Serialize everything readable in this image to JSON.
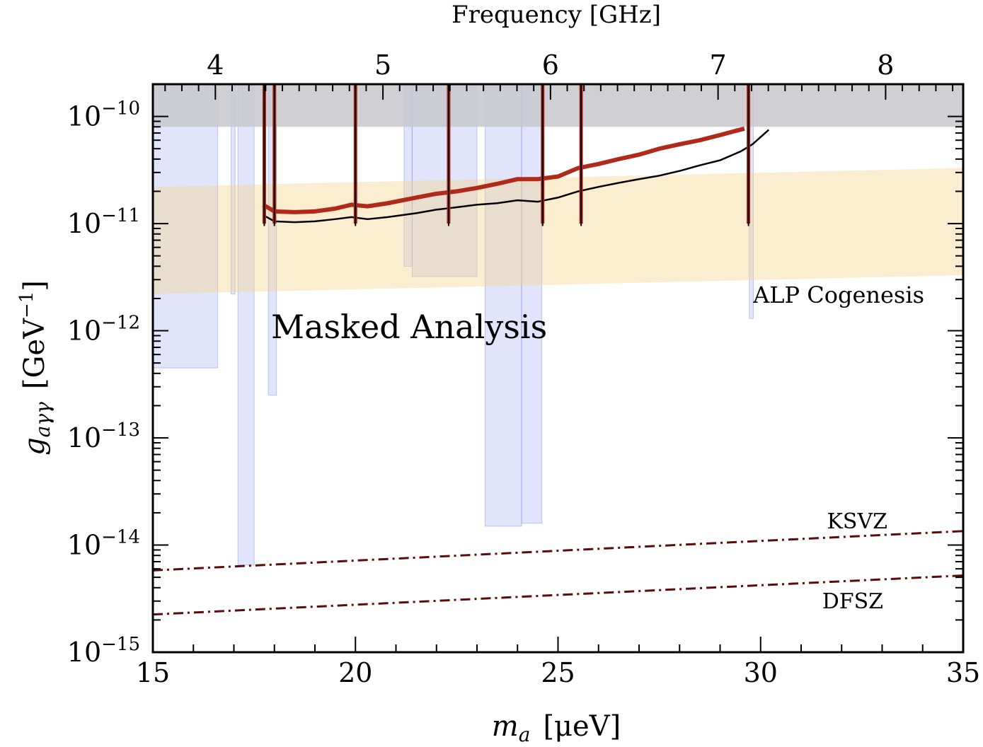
{
  "chart_data": {
    "type": "line",
    "x_axis": {
      "label": "m_a [μeV]",
      "label_parts": {
        "symbol": "m",
        "sub": "a",
        "unit": "[μeV]"
      },
      "scale": "linear",
      "range": [
        15,
        35
      ],
      "major_ticks": [
        15,
        20,
        25,
        30,
        35
      ],
      "minor_step": 1
    },
    "top_axis": {
      "label": "Frequency  [GHz]",
      "ticks": [
        {
          "value": 4,
          "label": "4"
        },
        {
          "value": 5,
          "label": "5"
        },
        {
          "value": 6,
          "label": "6"
        },
        {
          "value": 7,
          "label": "7"
        },
        {
          "value": 8,
          "label": "8"
        }
      ]
    },
    "y_axis": {
      "label": "g_aγγ [GeV^-1]",
      "label_parts": {
        "symbol": "g",
        "sub": "aγγ",
        "unit_open": "[GeV",
        "unit_exp": "−1",
        "unit_close": "]"
      },
      "scale": "log",
      "range": [
        1e-15,
        2e-10
      ],
      "ticks": [
        {
          "value": 1e-15,
          "base": "10",
          "exp": "−15"
        },
        {
          "value": 1e-14,
          "base": "10",
          "exp": "−14"
        },
        {
          "value": 1e-13,
          "base": "10",
          "exp": "−13"
        },
        {
          "value": 1e-12,
          "base": "10",
          "exp": "−12"
        },
        {
          "value": 1e-11,
          "base": "10",
          "exp": "−11"
        },
        {
          "value": 1e-10,
          "base": "10",
          "exp": "−10"
        }
      ]
    },
    "annotations": [
      {
        "text": "Masked Analysis",
        "color": "#b03020"
      },
      {
        "text": "ALP Cogenesis",
        "color": "#b08c1e"
      },
      {
        "text": "KSVZ",
        "color": "#5c0a0a"
      },
      {
        "text": "DFSZ",
        "color": "#5c0a0a"
      }
    ],
    "excluded_band": {
      "color": "#c8c8cc",
      "y_min": 8e-11,
      "y_max": 2e-10
    },
    "alp_cogenesis_band": {
      "color": "#f5d58a",
      "lower": [
        [
          15,
          2.2e-12
        ],
        [
          35,
          3.3e-12
        ]
      ],
      "upper": [
        [
          15,
          2.2e-11
        ],
        [
          35,
          3.3e-11
        ]
      ]
    },
    "other_exclusions_color": "#9aa4f2",
    "other_exclusions": [
      {
        "x": [
          15.0,
          16.6
        ],
        "y_min": 4.5e-13
      },
      {
        "x": [
          16.93,
          17.03
        ],
        "y_min": 2.2e-12
      },
      {
        "x": [
          17.1,
          17.5
        ],
        "y_min": 6.5e-15
      },
      {
        "x": [
          17.85,
          18.05
        ],
        "y_min": 2.5e-13
      },
      {
        "x": [
          21.2,
          21.4
        ],
        "y_min": 4e-12
      },
      {
        "x": [
          21.4,
          23.0
        ],
        "y_min": 3.2e-12
      },
      {
        "x": [
          23.2,
          24.1
        ],
        "y_min": 1.5e-14
      },
      {
        "x": [
          24.1,
          24.6
        ],
        "y_min": 1.6e-14
      },
      {
        "x": [
          29.72,
          29.82
        ],
        "y_min": 1.3e-12
      }
    ],
    "series": [
      {
        "name": "Masked Analysis",
        "color": "#b0291b",
        "x": [
          17.72,
          18.0,
          18.5,
          19.0,
          19.5,
          19.9,
          20.3,
          20.8,
          21.5,
          22.0,
          22.5,
          23.0,
          23.5,
          24.0,
          24.5,
          25.0,
          25.5,
          26.0,
          26.5,
          27.0,
          27.5,
          28.0,
          28.5,
          29.0,
          29.3,
          29.6
        ],
        "y": [
          1.5e-11,
          1.3e-11,
          1.28e-11,
          1.3e-11,
          1.38e-11,
          1.5e-11,
          1.45e-11,
          1.55e-11,
          1.75e-11,
          1.9e-11,
          2e-11,
          2.15e-11,
          2.35e-11,
          2.6e-11,
          2.6e-11,
          2.75e-11,
          3.3e-11,
          3.6e-11,
          4e-11,
          4.4e-11,
          5e-11,
          5.5e-11,
          6e-11,
          6.7e-11,
          7.2e-11,
          7.7e-11
        ]
      },
      {
        "name": "",
        "color": "#000000",
        "x": [
          17.72,
          18.0,
          18.5,
          19.0,
          19.5,
          19.9,
          20.3,
          20.8,
          21.5,
          22.0,
          22.5,
          23.0,
          23.5,
          24.0,
          24.5,
          25.0,
          25.5,
          26.0,
          26.5,
          27.0,
          27.5,
          28.0,
          28.5,
          29.0,
          29.5,
          29.8,
          30.2
        ],
        "y": [
          1.2e-11,
          1.05e-11,
          1.03e-11,
          1.05e-11,
          1.1e-11,
          1.15e-11,
          1.1e-11,
          1.15e-11,
          1.25e-11,
          1.35e-11,
          1.42e-11,
          1.5e-11,
          1.55e-11,
          1.65e-11,
          1.6e-11,
          1.75e-11,
          2e-11,
          2.2e-11,
          2.4e-11,
          2.6e-11,
          2.8e-11,
          3.1e-11,
          3.5e-11,
          3.9e-11,
          4.7e-11,
          5.5e-11,
          7.5e-11
        ]
      }
    ],
    "spikes": [
      17.75,
      18.0,
      20.0,
      22.3,
      24.62,
      25.57,
      29.7
    ],
    "reference_lines": [
      {
        "name": "KSVZ",
        "color": "#5c0a0a",
        "style": "dash-dot",
        "points": [
          [
            15,
            5.8e-15
          ],
          [
            35,
            1.35e-14
          ]
        ]
      },
      {
        "name": "DFSZ",
        "color": "#5c0a0a",
        "style": "dash-dot",
        "points": [
          [
            15,
            2.25e-15
          ],
          [
            35,
            5.2e-15
          ]
        ]
      }
    ]
  }
}
